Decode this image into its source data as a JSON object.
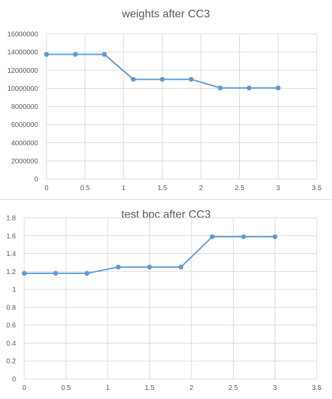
{
  "colors": {
    "series": "#5b9bd5",
    "grid": "#d9d9d9",
    "text": "#595959"
  },
  "chart_data": [
    {
      "type": "scatter",
      "title": "weights after CC3",
      "xlabel": "",
      "ylabel": "",
      "grid": true,
      "legend": "none",
      "xlim": [
        0,
        3.5
      ],
      "ylim": [
        0,
        16000000
      ],
      "x_ticks": [
        "0",
        "0.5",
        "1",
        "1.5",
        "2",
        "2.5",
        "3",
        "3.5"
      ],
      "y_ticks": [
        "0",
        "2000000",
        "4000000",
        "6000000",
        "8000000",
        "10000000",
        "12000000",
        "14000000",
        "16000000"
      ],
      "series": [
        {
          "x": [
            0,
            0.375,
            0.75,
            1.125,
            1.5,
            1.875,
            2.25,
            2.625,
            3.0
          ],
          "y": [
            13750000,
            13750000,
            13750000,
            11000000,
            11000000,
            11000000,
            10050000,
            10050000,
            10050000
          ]
        }
      ]
    },
    {
      "type": "scatter",
      "title": "test bpc after CC3",
      "xlabel": "",
      "ylabel": "",
      "grid": true,
      "legend": "none",
      "xlim": [
        0,
        3.5
      ],
      "ylim": [
        0,
        1.8
      ],
      "x_ticks": [
        "0",
        "0.5",
        "1",
        "1.5",
        "2",
        "2.5",
        "3",
        "3.5"
      ],
      "y_ticks": [
        "0",
        "0.2",
        "0.4",
        "0.6",
        "0.8",
        "1",
        "1.2",
        "1.4",
        "1.6",
        "1.8"
      ],
      "series": [
        {
          "x": [
            0,
            0.375,
            0.75,
            1.125,
            1.5,
            1.875,
            2.25,
            2.625,
            3.0
          ],
          "y": [
            1.18,
            1.18,
            1.18,
            1.25,
            1.25,
            1.25,
            1.59,
            1.59,
            1.59
          ]
        }
      ]
    }
  ]
}
